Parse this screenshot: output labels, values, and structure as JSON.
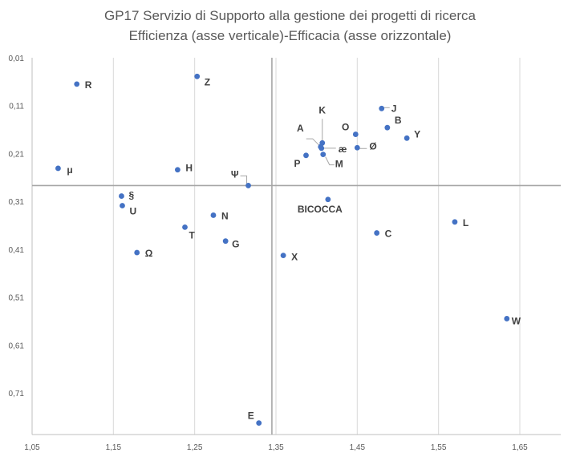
{
  "chart_data": {
    "type": "scatter",
    "title": "GP17 Servizio di Supporto alla gestione dei progetti di ricerca",
    "subtitle": "Efficienza (asse verticale)-Efficacia (asse orizzontale)",
    "xlim": [
      1.05,
      1.7
    ],
    "ylim": [
      0.01,
      0.79
    ],
    "y_inverted": true,
    "x_ticks": [
      "1,05",
      "1,15",
      "1,25",
      "1,35",
      "1,45",
      "1,55",
      "1,65"
    ],
    "x_tick_values": [
      1.05,
      1.15,
      1.25,
      1.35,
      1.45,
      1.55,
      1.65
    ],
    "y_ticks": [
      "0,01",
      "0,11",
      "0,21",
      "0,31",
      "0,41",
      "0,51",
      "0,61",
      "0,71"
    ],
    "y_tick_values": [
      0.01,
      0.11,
      0.21,
      0.31,
      0.41,
      0.51,
      0.61,
      0.71
    ],
    "reference_lines": {
      "x": 1.345,
      "y": 0.277
    },
    "grid": "vertical",
    "marker_color": "#4472c4",
    "points": [
      {
        "label": "R",
        "x": 1.105,
        "y": 0.065
      },
      {
        "label": "Z",
        "x": 1.253,
        "y": 0.049
      },
      {
        "label": "μ",
        "x": 1.082,
        "y": 0.241
      },
      {
        "label": "H",
        "x": 1.229,
        "y": 0.244
      },
      {
        "label": "Ψ",
        "x": 1.316,
        "y": 0.277
      },
      {
        "label": "§",
        "x": 1.16,
        "y": 0.299
      },
      {
        "label": "U",
        "x": 1.161,
        "y": 0.319
      },
      {
        "label": "N",
        "x": 1.273,
        "y": 0.339
      },
      {
        "label": "T",
        "x": 1.238,
        "y": 0.364
      },
      {
        "label": "G",
        "x": 1.288,
        "y": 0.393
      },
      {
        "label": "Ω",
        "x": 1.179,
        "y": 0.417
      },
      {
        "label": "X",
        "x": 1.359,
        "y": 0.423
      },
      {
        "label": "E",
        "x": 1.329,
        "y": 0.773
      },
      {
        "label": "K",
        "x": 1.407,
        "y": 0.188
      },
      {
        "label": "A",
        "x": 1.405,
        "y": 0.196
      },
      {
        "label": "æ",
        "x": 1.406,
        "y": 0.199
      },
      {
        "label": "M",
        "x": 1.408,
        "y": 0.212
      },
      {
        "label": "P",
        "x": 1.387,
        "y": 0.214
      },
      {
        "label": "O",
        "x": 1.448,
        "y": 0.17
      },
      {
        "label": "Ø",
        "x": 1.45,
        "y": 0.198
      },
      {
        "label": "J",
        "x": 1.48,
        "y": 0.116
      },
      {
        "label": "B",
        "x": 1.487,
        "y": 0.156
      },
      {
        "label": "Y",
        "x": 1.511,
        "y": 0.178
      },
      {
        "label": "BICOCCA",
        "x": 1.414,
        "y": 0.306
      },
      {
        "label": "C",
        "x": 1.474,
        "y": 0.376
      },
      {
        "label": "L",
        "x": 1.57,
        "y": 0.353
      },
      {
        "label": "W",
        "x": 1.634,
        "y": 0.555
      }
    ]
  }
}
